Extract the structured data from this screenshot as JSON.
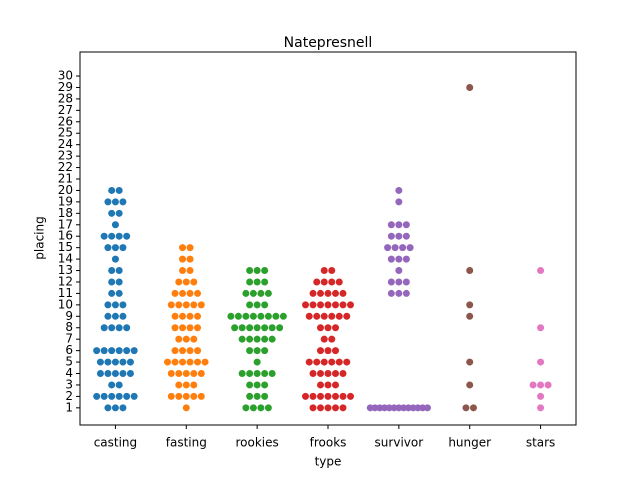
{
  "chart_data": {
    "type": "swarm",
    "title": "Natepresnell",
    "x_label": "type",
    "y_label": "placing",
    "categories": [
      "casting",
      "fasting",
      "rookies",
      "frooks",
      "survivor",
      "hunger",
      "stars"
    ],
    "colors": [
      "#1f77b4",
      "#ff7f0e",
      "#2ca02c",
      "#d62728",
      "#9467bd",
      "#8c564b",
      "#e377c2"
    ],
    "values": [
      [
        20,
        20,
        19,
        19,
        19,
        18,
        18,
        17,
        16,
        16,
        16,
        16,
        15,
        15,
        15,
        14,
        13,
        13,
        12,
        12,
        11,
        11,
        10,
        10,
        10,
        9,
        9,
        9,
        8,
        8,
        8,
        8,
        6,
        6,
        6,
        6,
        6,
        6,
        5,
        5,
        5,
        5,
        5,
        4,
        4,
        4,
        4,
        4,
        3,
        3,
        2,
        2,
        2,
        2,
        2,
        2,
        1,
        1,
        1
      ],
      [
        15,
        15,
        14,
        14,
        13,
        13,
        12,
        12,
        12,
        11,
        11,
        11,
        11,
        10,
        10,
        10,
        10,
        10,
        9,
        9,
        9,
        9,
        8,
        8,
        8,
        8,
        7,
        7,
        7,
        6,
        6,
        6,
        6,
        5,
        5,
        5,
        5,
        5,
        5,
        4,
        4,
        4,
        4,
        4,
        3,
        3,
        3,
        2,
        2,
        2,
        2,
        2,
        1
      ],
      [
        13,
        13,
        13,
        12,
        12,
        12,
        11,
        11,
        11,
        11,
        10,
        10,
        10,
        9,
        9,
        9,
        9,
        9,
        9,
        9,
        9,
        8,
        8,
        8,
        8,
        8,
        8,
        8,
        7,
        7,
        7,
        7,
        7,
        6,
        6,
        6,
        5,
        4,
        4,
        4,
        4,
        4,
        3,
        3,
        3,
        2,
        2,
        2,
        1,
        1,
        1,
        1
      ],
      [
        13,
        13,
        12,
        12,
        12,
        12,
        11,
        11,
        11,
        11,
        11,
        10,
        10,
        10,
        10,
        10,
        10,
        10,
        9,
        9,
        9,
        9,
        9,
        9,
        8,
        8,
        8,
        7,
        7,
        6,
        6,
        6,
        5,
        5,
        5,
        5,
        5,
        5,
        4,
        4,
        4,
        4,
        4,
        3,
        3,
        3,
        2,
        2,
        2,
        2,
        2,
        2,
        2,
        1,
        1,
        1,
        1,
        1
      ],
      [
        20,
        19,
        17,
        17,
        17,
        16,
        16,
        16,
        15,
        15,
        15,
        15,
        14,
        14,
        14,
        13,
        12,
        12,
        12,
        11,
        11,
        11,
        1,
        1,
        1,
        1,
        1,
        1,
        1,
        1,
        1,
        1,
        1,
        1,
        1
      ],
      [
        29,
        13,
        10,
        9,
        5,
        3,
        1,
        1
      ],
      [
        13,
        8,
        5,
        3,
        3,
        3,
        2,
        1
      ]
    ],
    "ylim": [
      -0.5,
      32.1
    ],
    "yticks": [
      1,
      2,
      3,
      4,
      5,
      6,
      7,
      8,
      9,
      10,
      11,
      12,
      13,
      14,
      15,
      16,
      17,
      18,
      19,
      20,
      21,
      22,
      23,
      24,
      25,
      26,
      27,
      28,
      29,
      30
    ]
  }
}
